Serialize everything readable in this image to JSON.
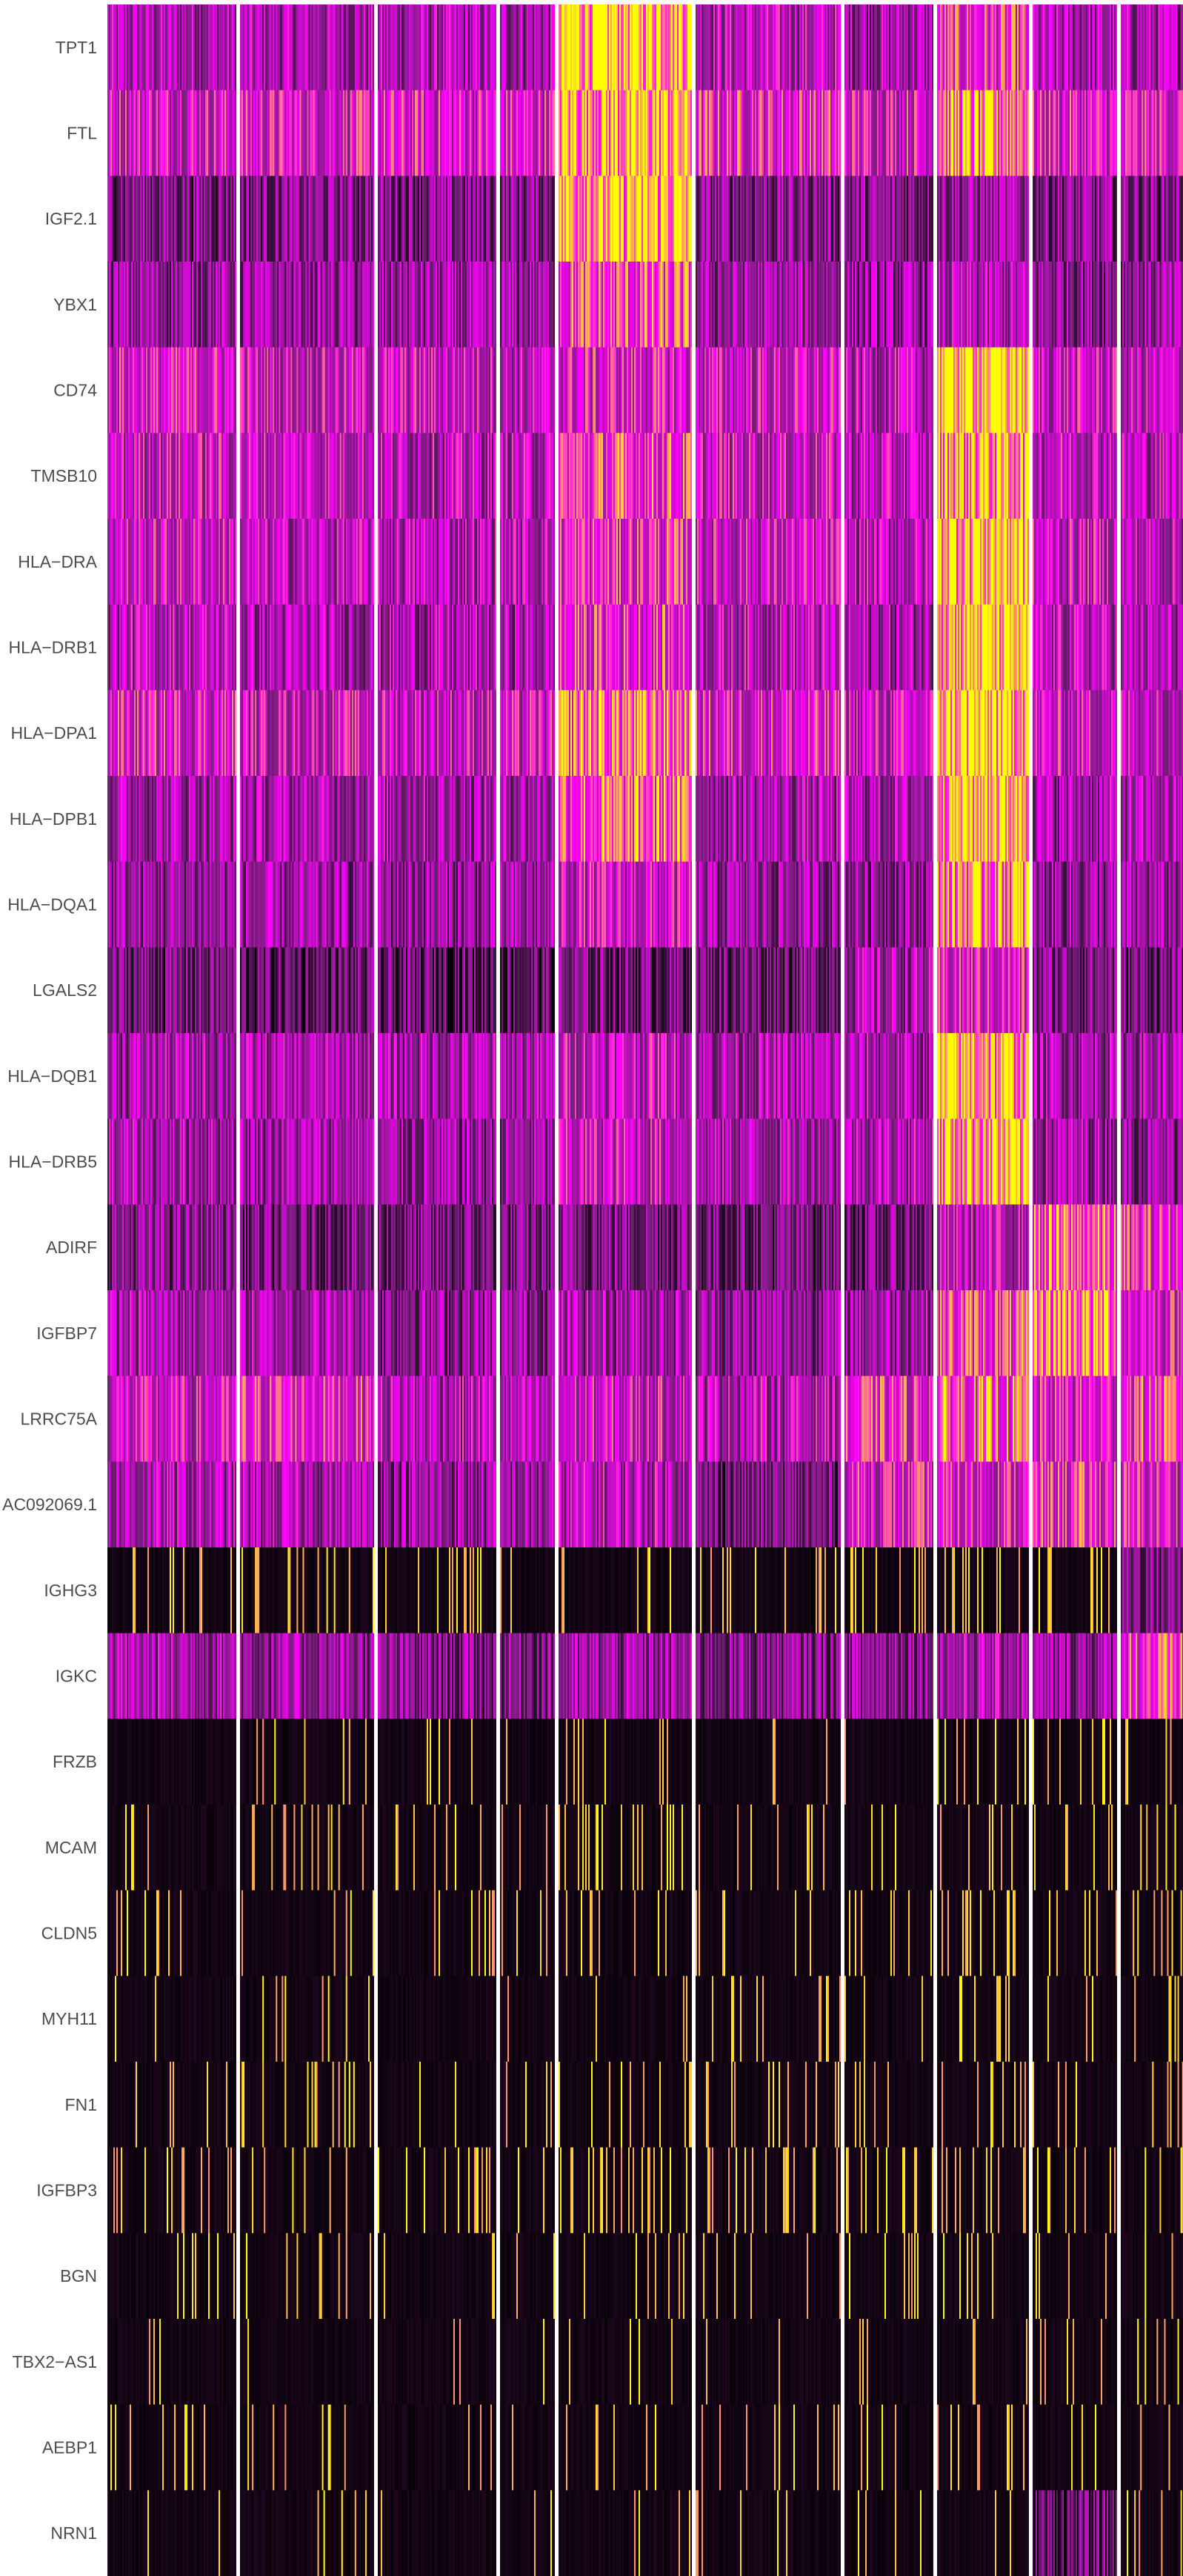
{
  "chart_data": {
    "type": "heatmap",
    "title": "",
    "xlabel": "",
    "ylabel": "",
    "genes": [
      "TPT1",
      "FTL",
      "IGF2.1",
      "YBX1",
      "CD74",
      "TMSB10",
      "HLA−DRA",
      "HLA−DRB1",
      "HLA−DPA1",
      "HLA−DPB1",
      "HLA−DQA1",
      "LGALS2",
      "HLA−DQB1",
      "HLA−DRB5",
      "ADIRF",
      "IGFBP7",
      "LRRC75A",
      "AC092069.1",
      "IGHG3",
      "IGKC",
      "FRZB",
      "MCAM",
      "CLDN5",
      "MYH11",
      "FN1",
      "IGFBP3",
      "BGN",
      "TBX2−AS1",
      "AEBP1",
      "NRN1"
    ],
    "cluster_widths": [
      174,
      181,
      160,
      74,
      180,
      196,
      120,
      124,
      114,
      129,
      17
    ],
    "colorscale": [
      "#000000",
      "#7b1e7f",
      "#ff00ff",
      "#ffff00"
    ],
    "expression": [
      [
        0.45,
        0.45,
        0.45,
        0.45,
        0.95,
        0.5,
        0.45,
        0.65,
        0.45,
        0.45,
        0.55
      ],
      [
        0.6,
        0.6,
        0.6,
        0.6,
        0.9,
        0.65,
        0.6,
        0.85,
        0.6,
        0.6,
        0.6
      ],
      [
        0.35,
        0.35,
        0.35,
        0.35,
        0.9,
        0.35,
        0.35,
        0.4,
        0.35,
        0.35,
        0.3
      ],
      [
        0.4,
        0.4,
        0.4,
        0.4,
        0.7,
        0.4,
        0.4,
        0.45,
        0.4,
        0.4,
        0.4
      ],
      [
        0.6,
        0.55,
        0.55,
        0.5,
        0.6,
        0.55,
        0.5,
        0.98,
        0.55,
        0.5,
        0.5
      ],
      [
        0.55,
        0.55,
        0.5,
        0.5,
        0.7,
        0.55,
        0.5,
        0.9,
        0.55,
        0.5,
        0.95
      ],
      [
        0.55,
        0.5,
        0.5,
        0.5,
        0.65,
        0.55,
        0.5,
        0.95,
        0.55,
        0.5,
        0.5
      ],
      [
        0.5,
        0.45,
        0.45,
        0.45,
        0.65,
        0.5,
        0.45,
        0.95,
        0.5,
        0.45,
        0.5
      ],
      [
        0.6,
        0.55,
        0.55,
        0.55,
        0.8,
        0.6,
        0.55,
        0.95,
        0.55,
        0.55,
        0.5
      ],
      [
        0.45,
        0.45,
        0.45,
        0.45,
        0.75,
        0.45,
        0.45,
        0.95,
        0.45,
        0.45,
        0.5
      ],
      [
        0.4,
        0.4,
        0.4,
        0.4,
        0.55,
        0.4,
        0.4,
        0.85,
        0.4,
        0.4,
        0.4
      ],
      [
        0.3,
        0.25,
        0.25,
        0.25,
        0.3,
        0.3,
        0.45,
        0.6,
        0.35,
        0.3,
        0.3
      ],
      [
        0.45,
        0.45,
        0.45,
        0.45,
        0.55,
        0.45,
        0.45,
        0.9,
        0.45,
        0.45,
        0.4
      ],
      [
        0.45,
        0.45,
        0.4,
        0.4,
        0.55,
        0.45,
        0.5,
        0.9,
        0.45,
        0.4,
        0.4
      ],
      [
        0.35,
        0.3,
        0.3,
        0.3,
        0.35,
        0.3,
        0.3,
        0.5,
        0.75,
        0.65,
        0.98
      ],
      [
        0.45,
        0.45,
        0.4,
        0.4,
        0.45,
        0.4,
        0.45,
        0.7,
        0.85,
        0.6,
        0.98
      ],
      [
        0.55,
        0.65,
        0.5,
        0.45,
        0.55,
        0.5,
        0.65,
        0.75,
        0.6,
        0.7,
        0.6
      ],
      [
        0.45,
        0.45,
        0.4,
        0.4,
        0.5,
        0.3,
        0.6,
        0.6,
        0.65,
        0.6,
        0.45
      ],
      [
        0.1,
        0.1,
        0.12,
        0.08,
        0.1,
        0.1,
        0.1,
        0.15,
        0.15,
        0.35,
        0.2
      ],
      [
        0.45,
        0.4,
        0.35,
        0.35,
        0.4,
        0.35,
        0.4,
        0.45,
        0.4,
        0.7,
        0.3
      ],
      [
        0.02,
        0.08,
        0.08,
        0.05,
        0.05,
        0.05,
        0.08,
        0.1,
        0.15,
        0.15,
        0.9
      ],
      [
        0.08,
        0.12,
        0.1,
        0.06,
        0.2,
        0.08,
        0.12,
        0.2,
        0.15,
        0.15,
        0.7
      ],
      [
        0.06,
        0.1,
        0.08,
        0.06,
        0.1,
        0.08,
        0.1,
        0.18,
        0.12,
        0.15,
        0.8
      ],
      [
        0.06,
        0.08,
        0.06,
        0.06,
        0.08,
        0.08,
        0.08,
        0.1,
        0.1,
        0.1,
        0.9
      ],
      [
        0.08,
        0.1,
        0.08,
        0.08,
        0.1,
        0.08,
        0.08,
        0.12,
        0.12,
        0.1,
        0.85
      ],
      [
        0.15,
        0.08,
        0.12,
        0.08,
        0.2,
        0.1,
        0.18,
        0.15,
        0.15,
        0.15,
        0.98
      ],
      [
        0.08,
        0.08,
        0.08,
        0.08,
        0.08,
        0.08,
        0.08,
        0.12,
        0.1,
        0.1,
        0.8
      ],
      [
        0.03,
        0.03,
        0.03,
        0.03,
        0.05,
        0.03,
        0.05,
        0.08,
        0.12,
        0.08,
        0.3
      ],
      [
        0.08,
        0.08,
        0.06,
        0.06,
        0.08,
        0.06,
        0.08,
        0.12,
        0.12,
        0.1,
        0.4
      ],
      [
        0.04,
        0.04,
        0.03,
        0.03,
        0.04,
        0.03,
        0.04,
        0.04,
        0.25,
        0.15,
        0.25
      ]
    ]
  }
}
